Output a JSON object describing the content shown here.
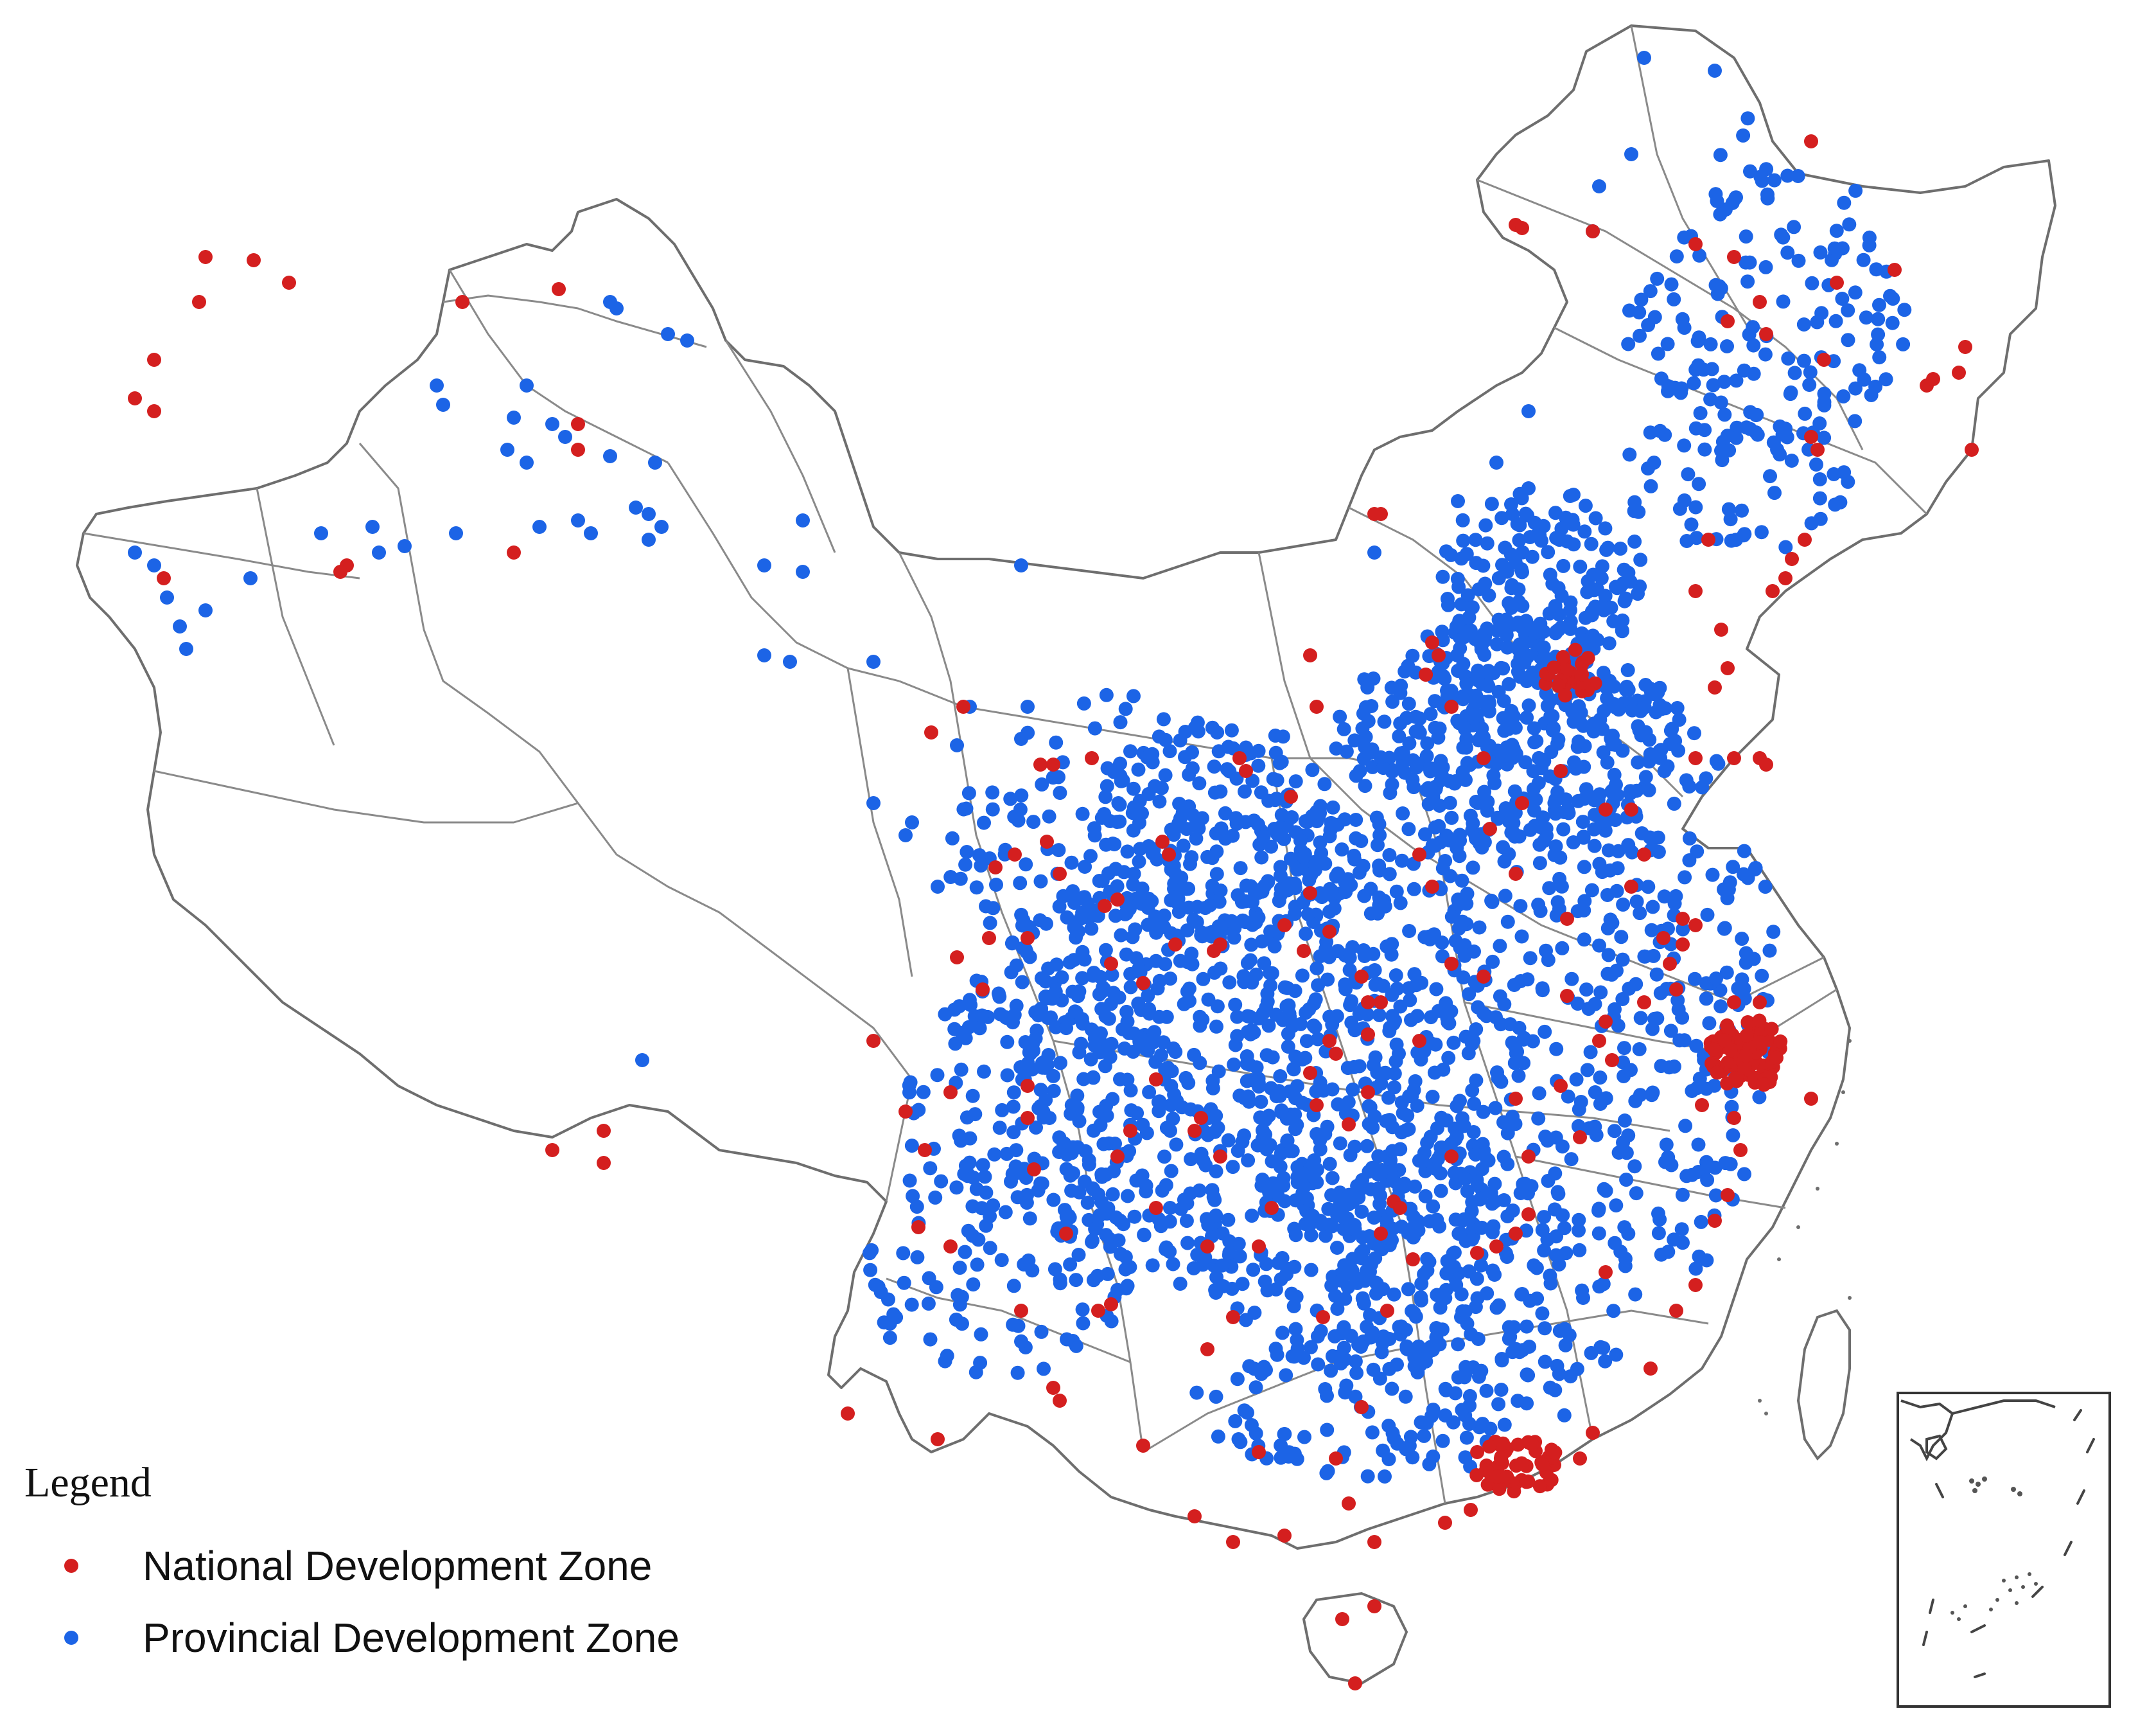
{
  "legend": {
    "title": "Legend",
    "items": [
      {
        "label": "National Development Zone",
        "color": "#d41f1f"
      },
      {
        "label": "Provincial Development Zone",
        "color": "#1c64e6"
      }
    ]
  },
  "colors": {
    "boundary": "#6e6e6e",
    "national": "#d41f1f",
    "provincial": "#1c64e6",
    "background": "#ffffff"
  }
}
